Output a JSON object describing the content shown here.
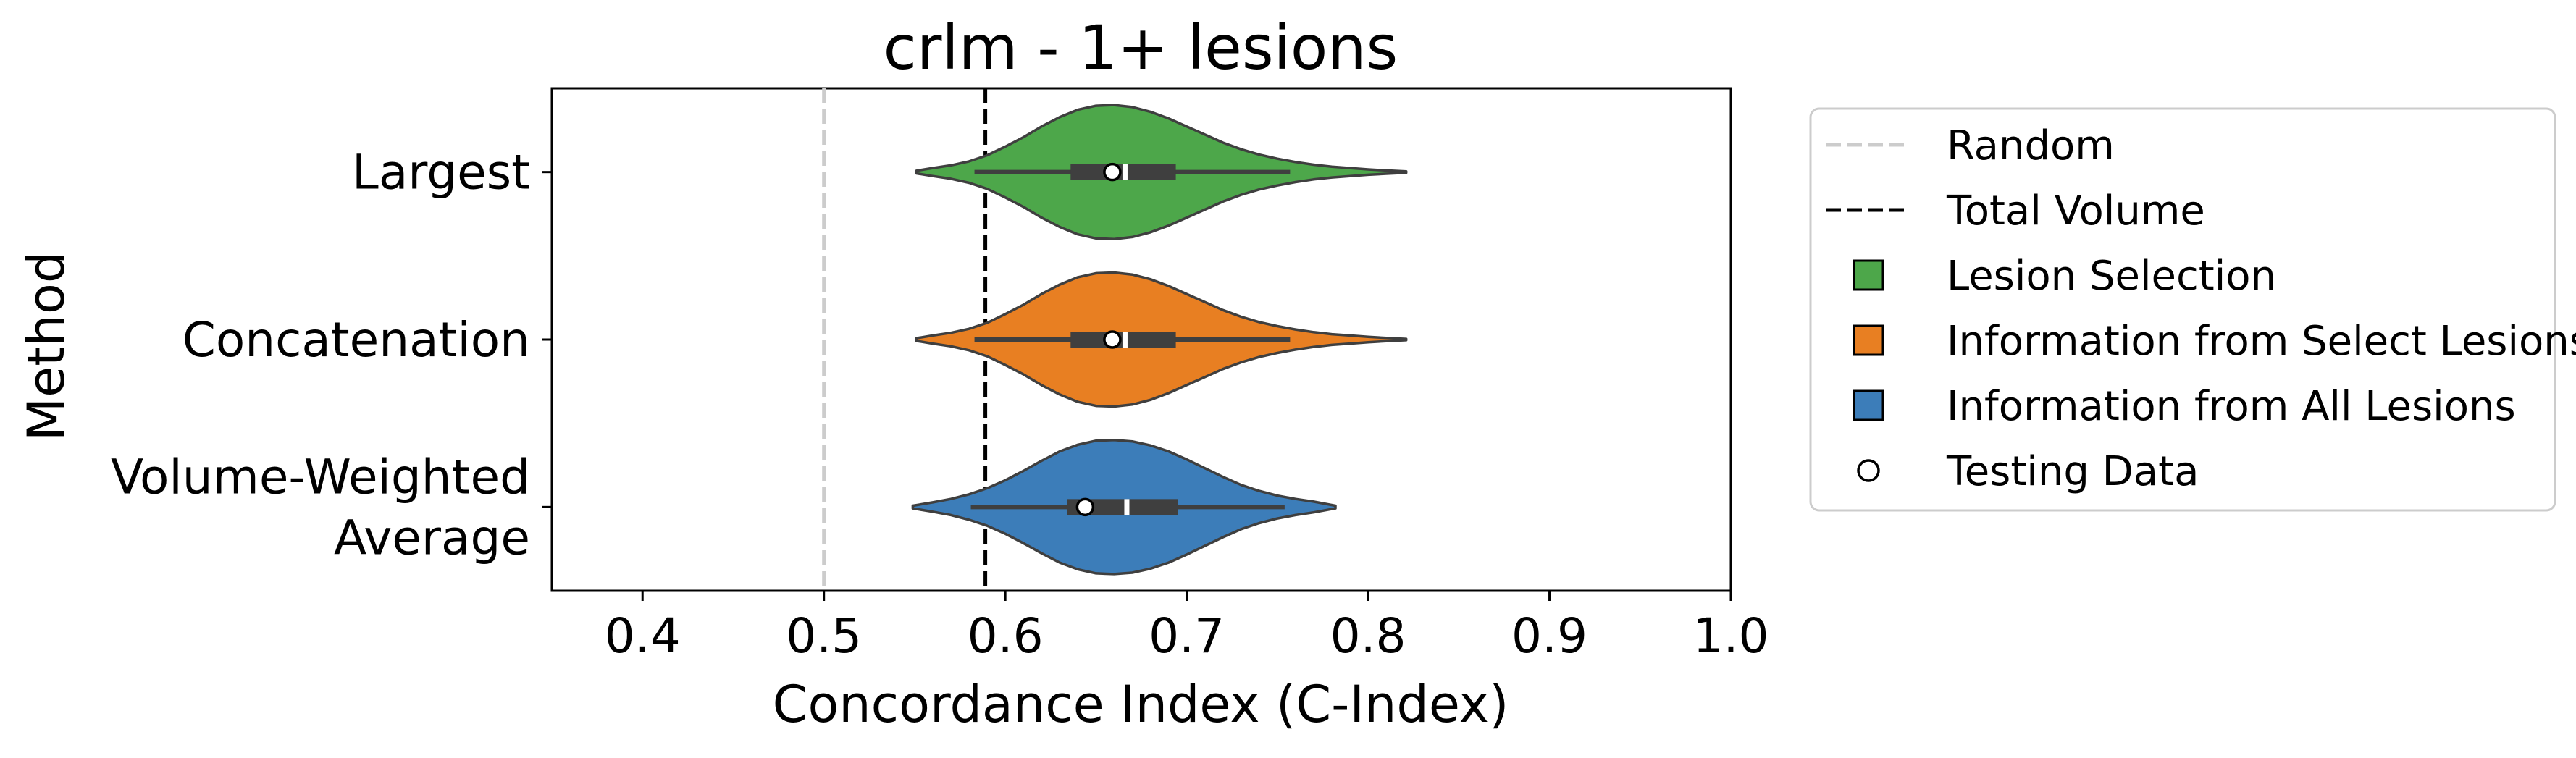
{
  "chart_data": {
    "type": "violin",
    "title": "crlm - 1+ lesions",
    "xlabel": "Concordance Index (C-Index)",
    "ylabel": "Method",
    "xlim": [
      0.35,
      1.0
    ],
    "xticks": [
      0.4,
      0.5,
      0.6,
      0.7,
      0.8,
      0.9,
      1.0
    ],
    "xtick_labels": [
      "0.4",
      "0.5",
      "0.6",
      "0.7",
      "0.8",
      "0.9",
      "1.0"
    ],
    "orientation": "horizontal",
    "grid": false,
    "legend_position": "outside right",
    "reference_lines": [
      {
        "label": "Random",
        "x": 0.5,
        "color": "#cccccc",
        "style": "dashed"
      },
      {
        "label": "Total Volume",
        "x": 0.589,
        "color": "#000000",
        "style": "dashed"
      }
    ],
    "categories": [
      {
        "lines": [
          "Largest"
        ]
      },
      {
        "lines": [
          "Concatenation"
        ]
      },
      {
        "lines": [
          "Volume-Weighted",
          "Average"
        ]
      }
    ],
    "series": [
      {
        "category_index": 0,
        "group": "Lesion Selection",
        "color": "#4da74a",
        "min": 0.551,
        "q1": 0.636,
        "median": 0.666,
        "q3": 0.694,
        "max": 0.821,
        "whisker_low": 0.583,
        "whisker_high": 0.757,
        "testing_value": 0.659,
        "density": [
          [
            0.551,
            0.02
          ],
          [
            0.56,
            0.06
          ],
          [
            0.57,
            0.1
          ],
          [
            0.58,
            0.16
          ],
          [
            0.59,
            0.25
          ],
          [
            0.6,
            0.38
          ],
          [
            0.61,
            0.52
          ],
          [
            0.62,
            0.68
          ],
          [
            0.63,
            0.82
          ],
          [
            0.64,
            0.93
          ],
          [
            0.65,
            0.99
          ],
          [
            0.66,
            1.0
          ],
          [
            0.67,
            0.97
          ],
          [
            0.68,
            0.9
          ],
          [
            0.69,
            0.8
          ],
          [
            0.7,
            0.68
          ],
          [
            0.71,
            0.56
          ],
          [
            0.72,
            0.44
          ],
          [
            0.73,
            0.34
          ],
          [
            0.74,
            0.26
          ],
          [
            0.75,
            0.2
          ],
          [
            0.76,
            0.15
          ],
          [
            0.77,
            0.11
          ],
          [
            0.78,
            0.08
          ],
          [
            0.79,
            0.06
          ],
          [
            0.8,
            0.04
          ],
          [
            0.81,
            0.025
          ],
          [
            0.821,
            0.01
          ]
        ]
      },
      {
        "category_index": 1,
        "group": "Information from Select Lesions",
        "color": "#e87f22",
        "min": 0.551,
        "q1": 0.636,
        "median": 0.666,
        "q3": 0.694,
        "max": 0.821,
        "whisker_low": 0.583,
        "whisker_high": 0.757,
        "testing_value": 0.659,
        "density": [
          [
            0.551,
            0.02
          ],
          [
            0.56,
            0.06
          ],
          [
            0.57,
            0.1
          ],
          [
            0.58,
            0.16
          ],
          [
            0.59,
            0.25
          ],
          [
            0.6,
            0.38
          ],
          [
            0.61,
            0.52
          ],
          [
            0.62,
            0.68
          ],
          [
            0.63,
            0.82
          ],
          [
            0.64,
            0.93
          ],
          [
            0.65,
            0.99
          ],
          [
            0.66,
            1.0
          ],
          [
            0.67,
            0.97
          ],
          [
            0.68,
            0.9
          ],
          [
            0.69,
            0.8
          ],
          [
            0.7,
            0.68
          ],
          [
            0.71,
            0.56
          ],
          [
            0.72,
            0.44
          ],
          [
            0.73,
            0.34
          ],
          [
            0.74,
            0.26
          ],
          [
            0.75,
            0.2
          ],
          [
            0.76,
            0.15
          ],
          [
            0.77,
            0.11
          ],
          [
            0.78,
            0.08
          ],
          [
            0.79,
            0.06
          ],
          [
            0.8,
            0.04
          ],
          [
            0.81,
            0.025
          ],
          [
            0.821,
            0.01
          ]
        ]
      },
      {
        "category_index": 2,
        "group": "Information from All Lesions",
        "color": "#3c7db9",
        "min": 0.549,
        "q1": 0.634,
        "median": 0.667,
        "q3": 0.695,
        "max": 0.782,
        "whisker_low": 0.581,
        "whisker_high": 0.754,
        "testing_value": 0.644,
        "density": [
          [
            0.549,
            0.02
          ],
          [
            0.56,
            0.07
          ],
          [
            0.57,
            0.12
          ],
          [
            0.58,
            0.19
          ],
          [
            0.59,
            0.28
          ],
          [
            0.6,
            0.4
          ],
          [
            0.61,
            0.54
          ],
          [
            0.62,
            0.69
          ],
          [
            0.63,
            0.83
          ],
          [
            0.64,
            0.93
          ],
          [
            0.65,
            0.99
          ],
          [
            0.66,
            1.0
          ],
          [
            0.67,
            0.98
          ],
          [
            0.68,
            0.92
          ],
          [
            0.69,
            0.83
          ],
          [
            0.7,
            0.71
          ],
          [
            0.71,
            0.58
          ],
          [
            0.72,
            0.45
          ],
          [
            0.73,
            0.33
          ],
          [
            0.74,
            0.24
          ],
          [
            0.75,
            0.17
          ],
          [
            0.76,
            0.12
          ],
          [
            0.77,
            0.08
          ],
          [
            0.782,
            0.02
          ]
        ]
      }
    ],
    "legend": [
      {
        "label": "Random",
        "kind": "line",
        "color": "#cccccc",
        "style": "dashed"
      },
      {
        "label": "Total Volume",
        "kind": "line",
        "color": "#000000",
        "style": "dashed"
      },
      {
        "label": "Lesion Selection",
        "kind": "patch",
        "color": "#4da74a"
      },
      {
        "label": "Information from Select Lesions",
        "kind": "patch",
        "color": "#e87f22"
      },
      {
        "label": "Information from All Lesions",
        "kind": "patch",
        "color": "#3c7db9"
      },
      {
        "label": "Testing Data",
        "kind": "marker",
        "color": "#ffffff"
      }
    ]
  }
}
